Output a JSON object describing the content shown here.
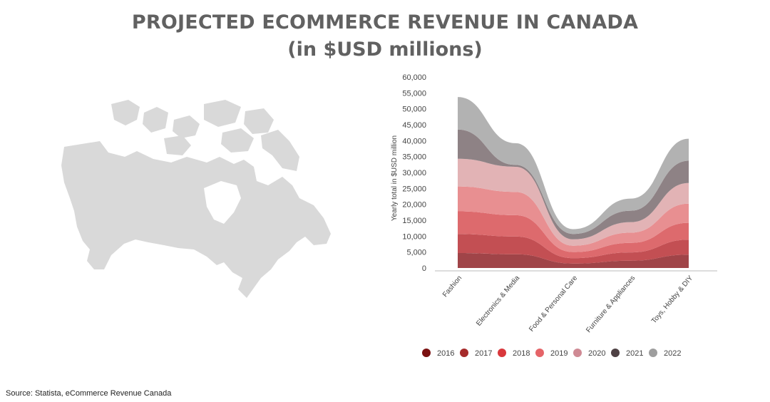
{
  "title_line1": "PROJECTED ECOMMERCE REVENUE IN CANADA",
  "title_line2": "(in $USD millions)",
  "source": "Source: Statista, eCommerce Revenue Canada",
  "map_color": "#d9d9d9",
  "chart_data": {
    "type": "area",
    "stacked": true,
    "smooth": true,
    "title": "",
    "xlabel": "",
    "ylabel": "Yearly total in $USD million",
    "ylim": [
      0,
      60000
    ],
    "yticks": [
      "0",
      "5,000",
      "10,000",
      "15,000",
      "20,000",
      "25,000",
      "30,000",
      "35,000",
      "40,000",
      "45,000",
      "50,000",
      "55,000",
      "60,000"
    ],
    "categories": [
      "Fashion",
      "Electronics & Media",
      "Food & Personal Care",
      "Furniture & Appliances",
      "Toys, Hobby & DIY"
    ],
    "legend_position": "bottom",
    "series": [
      {
        "name": "2016",
        "color": "#a04448",
        "values": [
          4700,
          4300,
          1400,
          2300,
          4200
        ]
      },
      {
        "name": "2017",
        "color": "#c34f53",
        "values": [
          6000,
          5600,
          1700,
          2600,
          4700
        ]
      },
      {
        "name": "2018",
        "color": "#dd6a6d",
        "values": [
          7100,
          6700,
          1900,
          3000,
          5300
        ]
      },
      {
        "name": "2019",
        "color": "#e88f91",
        "values": [
          7800,
          7300,
          2000,
          3200,
          6000
        ]
      },
      {
        "name": "2020",
        "color": "#e2b3b5",
        "values": [
          8700,
          7900,
          2000,
          3300,
          6500
        ]
      },
      {
        "name": "2021",
        "color": "#8e8285",
        "values": [
          9200,
          600,
          1700,
          3600,
          7000
        ]
      },
      {
        "name": "2022",
        "color": "#b2b2b2",
        "values": [
          10200,
          6800,
          1500,
          3800,
          6900
        ]
      }
    ],
    "legend_dot_colors": [
      "#7a1010",
      "#a52a2a",
      "#d9383c",
      "#e56468",
      "#cf8a94",
      "#4e4144",
      "#9e9e9e"
    ]
  }
}
